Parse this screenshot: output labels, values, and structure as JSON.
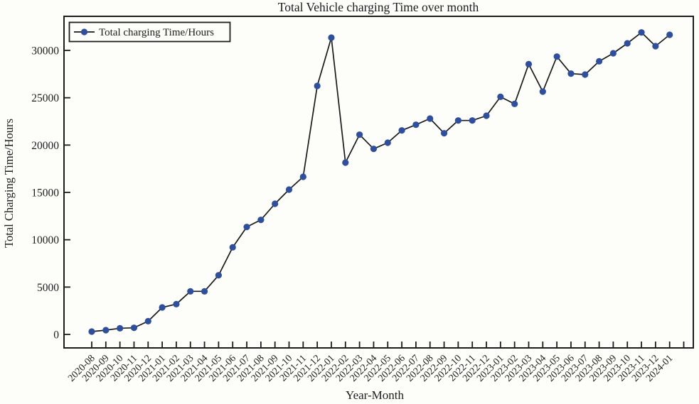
{
  "figure": {
    "background": "#fdfdfa",
    "axis_color": "#1c1c1c"
  },
  "chart_data": {
    "type": "line",
    "title": "Total Vehicle charging Time over month",
    "xlabel": "Year-Month",
    "ylabel": "Total Charging Time/Hours",
    "legend": {
      "position": "upper-left",
      "entries": [
        "Total charging Time/Hours"
      ]
    },
    "grid": false,
    "yticks": [
      0,
      5000,
      10000,
      15000,
      20000,
      25000,
      30000
    ],
    "ylim": [
      -1500,
      33600
    ],
    "categories": [
      "2020-08",
      "2020-09",
      "2020-10",
      "2020-11",
      "2020-12",
      "2021-01",
      "2021-02",
      "2021-03",
      "2021-04",
      "2021-05",
      "2021-06",
      "2021-07",
      "2021-08",
      "2021-09",
      "2021-10",
      "2021-11",
      "2021-12",
      "2022-01",
      "2022-02",
      "2022-03",
      "2022-04",
      "2022-05",
      "2022-06",
      "2022-07",
      "2022-08",
      "2022-09",
      "2022-10",
      "2022-11",
      "2022-12",
      "2023-01",
      "2023-02",
      "2023-03",
      "2023-04",
      "2023-05",
      "2023-06",
      "2023-07",
      "2023-08",
      "2023-09",
      "2023-10",
      "2023-11",
      "2023-12",
      "2024-01"
    ],
    "series": [
      {
        "name": "Total charging Time/Hours",
        "marker": "circle",
        "marker_color": "#2d4f9e",
        "line_color": "#1a1a1a",
        "values": [
          300,
          450,
          650,
          700,
          1400,
          2850,
          3200,
          4550,
          4550,
          6250,
          9200,
          11350,
          12100,
          13800,
          15300,
          16650,
          26250,
          31350,
          18150,
          21100,
          19600,
          20250,
          21550,
          22150,
          22800,
          21250,
          22600,
          22600,
          23100,
          25100,
          24350,
          28550,
          25650,
          29350,
          27550,
          27450,
          28850,
          29700,
          30750,
          31900,
          30450,
          31650
        ]
      }
    ]
  }
}
